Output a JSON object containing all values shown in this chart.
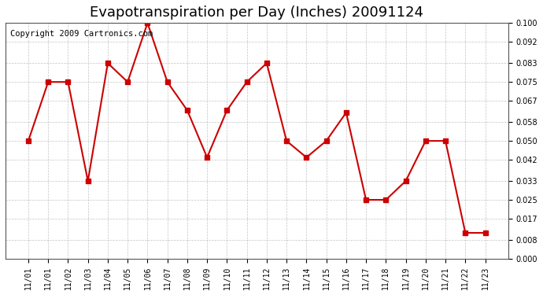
{
  "title": "Evapotranspiration per Day (Inches) 20091124",
  "copyright_text": "Copyright 2009 Cartronics.com",
  "x_labels": [
    "11/01",
    "11/01",
    "11/02",
    "11/03",
    "11/04",
    "11/05",
    "11/06",
    "11/07",
    "11/08",
    "11/09",
    "11/10",
    "11/11",
    "11/12",
    "11/13",
    "11/14",
    "11/15",
    "11/16",
    "11/17",
    "11/18",
    "11/19",
    "11/20",
    "11/21",
    "11/22",
    "11/23"
  ],
  "y_values": [
    0.05,
    0.075,
    0.075,
    0.033,
    0.083,
    0.075,
    0.1,
    0.075,
    0.063,
    0.043,
    0.063,
    0.075,
    0.083,
    0.05,
    0.043,
    0.05,
    0.062,
    0.025,
    0.025,
    0.033,
    0.05,
    0.05,
    0.011,
    0.011
  ],
  "line_color": "#cc0000",
  "marker": "s",
  "marker_size": 4,
  "background_color": "#ffffff",
  "plot_bg_color": "#ffffff",
  "grid_color": "#aaaaaa",
  "ylim": [
    0.0,
    0.1
  ],
  "yticks": [
    0.0,
    0.008,
    0.017,
    0.025,
    0.033,
    0.042,
    0.05,
    0.058,
    0.067,
    0.075,
    0.083,
    0.092,
    0.1
  ],
  "title_fontsize": 13,
  "copyright_fontsize": 7.5
}
